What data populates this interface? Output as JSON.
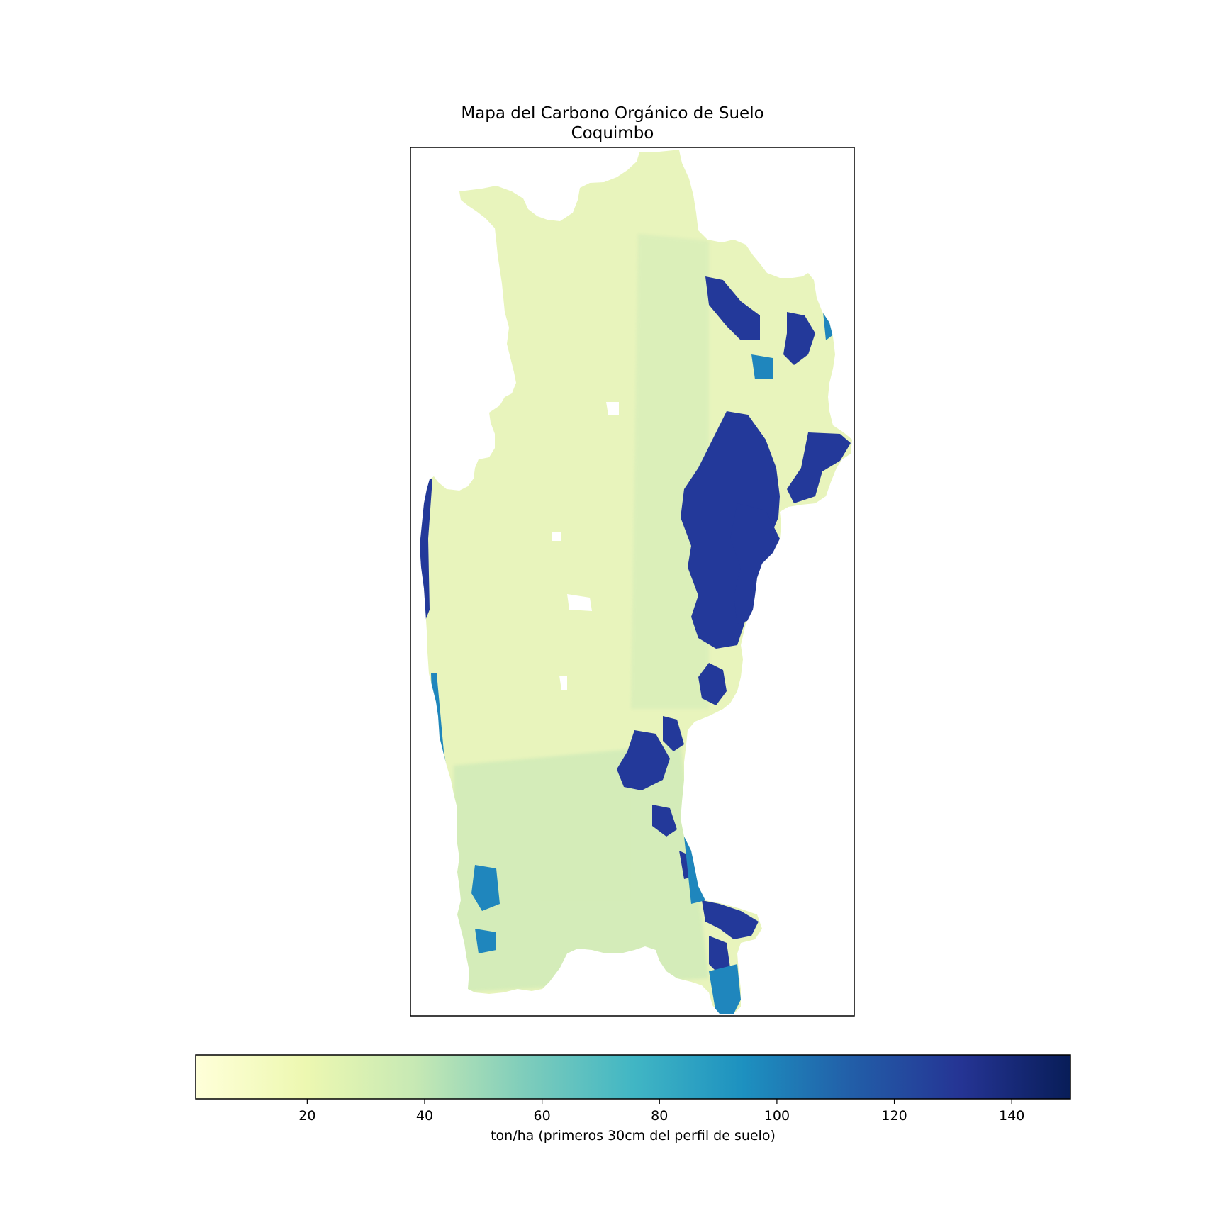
{
  "title": {
    "line1": "Mapa del Carbono Orgánico de Suelo",
    "line2": "Coquimbo"
  },
  "colorbar": {
    "label": "ton/ha (primeros 30cm del perfil de suelo)",
    "vmin": 1,
    "vmax": 150,
    "ticks": [
      20,
      40,
      60,
      80,
      100,
      120,
      140
    ],
    "colormap": "YlGnBu",
    "stops": [
      {
        "offset": 0.0,
        "color": "#ffffd9"
      },
      {
        "offset": 0.125,
        "color": "#edf8b1"
      },
      {
        "offset": 0.25,
        "color": "#c7e9b4"
      },
      {
        "offset": 0.375,
        "color": "#7fcdbb"
      },
      {
        "offset": 0.5,
        "color": "#41b6c4"
      },
      {
        "offset": 0.625,
        "color": "#1d91c0"
      },
      {
        "offset": 0.75,
        "color": "#225ea8"
      },
      {
        "offset": 0.875,
        "color": "#253494"
      },
      {
        "offset": 1.0,
        "color": "#081d58"
      }
    ]
  },
  "map": {
    "region": "Coquimbo",
    "land_base_color": "#e8f4bc",
    "south_tint_color": "#c4e6b6",
    "high_carbon_color": "#23399a",
    "mid_carbon_color": "#1f86bd"
  }
}
